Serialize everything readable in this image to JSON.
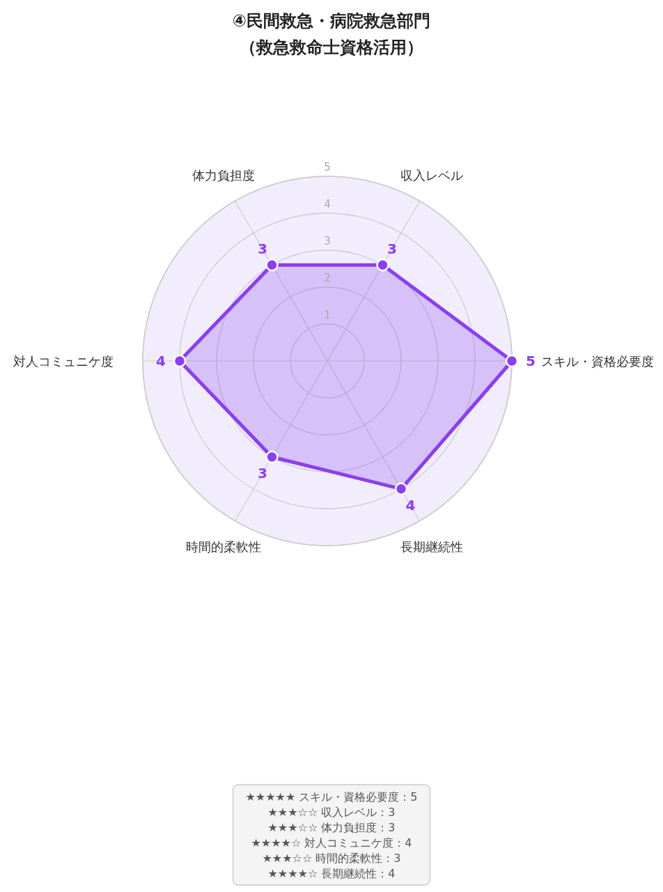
{
  "chart_data": {
    "type": "radar",
    "title": "④民間救急・病院救急部門",
    "subtitle": "（救急救命士資格活用）",
    "categories": [
      "収入レベル",
      "スキル・資格必要度",
      "長期継続性",
      "時間的柔軟性",
      "対人コミュニケ度",
      "体力負担度"
    ],
    "series": [
      {
        "color": "#8a3ff0",
        "values": [
          3,
          5,
          4,
          3,
          4,
          3
        ]
      }
    ],
    "ylim": [
      0,
      5
    ],
    "yticks": [
      1,
      2,
      3,
      4,
      5
    ],
    "grid": true,
    "marker": "circle",
    "data_labels": true,
    "annotations": [
      "★★★★★ スキル・資格必要度：5",
      "★★★☆☆ 収入レベル：3",
      "★★★☆☆ 体力負担度：3",
      "★★★★☆ 対人コミュニケ度：4",
      "★★★☆☆ 時間的柔軟性：3",
      "★★★★☆ 長期継続性：4"
    ]
  }
}
